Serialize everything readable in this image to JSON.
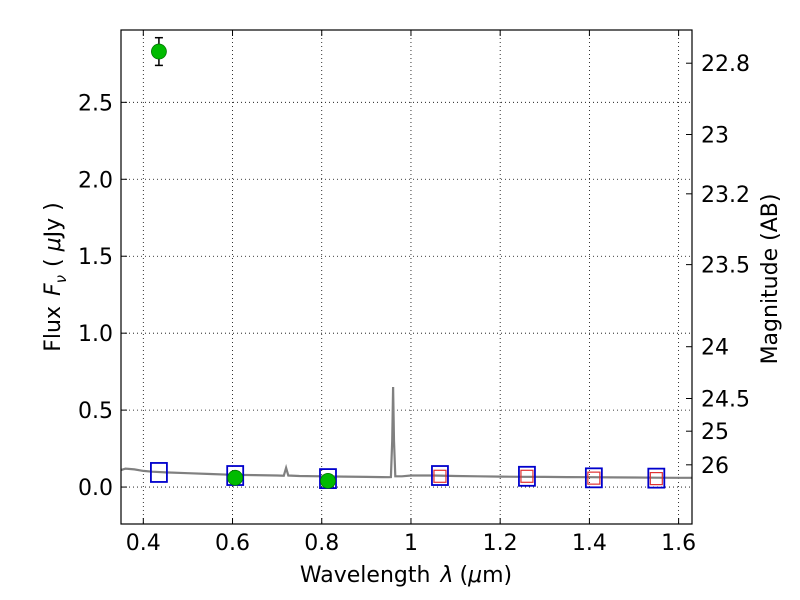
{
  "chart_data": {
    "type": "scatter",
    "xlabel_text": "Wavelength",
    "xlabel_symbol": "λ",
    "xlabel_unit_open": "(",
    "xlabel_unit_mu": "μ",
    "xlabel_unit_rest": "m)",
    "ylabel_text": "Flux",
    "ylabel_symbol": "F",
    "ylabel_subscript": "ν",
    "ylabel_unit_open": "( ",
    "ylabel_unit_mu": "μ",
    "ylabel_unit_rest": "Jy )",
    "y2label": "Magnitude (AB)",
    "xlim": [
      0.35,
      1.63
    ],
    "ylim": [
      -0.24,
      2.97
    ],
    "grid": true,
    "x_ticks": [
      {
        "value": 0.4,
        "label": "0.4"
      },
      {
        "value": 0.6,
        "label": "0.6"
      },
      {
        "value": 0.8,
        "label": "0.8"
      },
      {
        "value": 1.0,
        "label": "1"
      },
      {
        "value": 1.2,
        "label": "1.2"
      },
      {
        "value": 1.4,
        "label": "1.4"
      },
      {
        "value": 1.6,
        "label": "1.6"
      }
    ],
    "y_ticks": [
      {
        "value": 0.0,
        "label": "0.0"
      },
      {
        "value": 0.5,
        "label": "0.5"
      },
      {
        "value": 1.0,
        "label": "1.0"
      },
      {
        "value": 1.5,
        "label": "1.5"
      },
      {
        "value": 2.0,
        "label": "2.0"
      },
      {
        "value": 2.5,
        "label": "2.5"
      }
    ],
    "y2_ticks": [
      {
        "value": 22.8,
        "label": "22.8"
      },
      {
        "value": 23.0,
        "label": "23"
      },
      {
        "value": 23.2,
        "label": "23.2"
      },
      {
        "value": 23.5,
        "label": "23.5"
      },
      {
        "value": 24.0,
        "label": "24"
      },
      {
        "value": 24.5,
        "label": "24.5"
      },
      {
        "value": 25.0,
        "label": "25"
      },
      {
        "value": 26.0,
        "label": "26"
      }
    ],
    "model_spectrum": {
      "color": "#808080",
      "points": [
        [
          0.35,
          0.11
        ],
        [
          0.36,
          0.12
        ],
        [
          0.38,
          0.115
        ],
        [
          0.4,
          0.105
        ],
        [
          0.42,
          0.1
        ],
        [
          0.45,
          0.095
        ],
        [
          0.5,
          0.09
        ],
        [
          0.55,
          0.085
        ],
        [
          0.6,
          0.08
        ],
        [
          0.65,
          0.078
        ],
        [
          0.7,
          0.075
        ],
        [
          0.715,
          0.074
        ],
        [
          0.72,
          0.125
        ],
        [
          0.725,
          0.075
        ],
        [
          0.75,
          0.072
        ],
        [
          0.8,
          0.07
        ],
        [
          0.85,
          0.068
        ],
        [
          0.9,
          0.066
        ],
        [
          0.95,
          0.064
        ],
        [
          0.955,
          0.065
        ],
        [
          0.958,
          0.3
        ],
        [
          0.96,
          0.65
        ],
        [
          0.962,
          0.3
        ],
        [
          0.965,
          0.07
        ],
        [
          0.98,
          0.07
        ],
        [
          1.0,
          0.075
        ],
        [
          1.05,
          0.075
        ],
        [
          1.1,
          0.072
        ],
        [
          1.15,
          0.07
        ],
        [
          1.2,
          0.068
        ],
        [
          1.25,
          0.067
        ],
        [
          1.3,
          0.066
        ],
        [
          1.35,
          0.065
        ],
        [
          1.4,
          0.064
        ],
        [
          1.45,
          0.063
        ],
        [
          1.5,
          0.062
        ],
        [
          1.55,
          0.061
        ],
        [
          1.6,
          0.06
        ],
        [
          1.63,
          0.06
        ]
      ]
    },
    "model_photometry": {
      "color": "#0000cc",
      "points": [
        [
          0.435,
          0.095
        ],
        [
          0.606,
          0.075
        ],
        [
          0.814,
          0.055
        ],
        [
          1.065,
          0.075
        ],
        [
          1.26,
          0.07
        ],
        [
          1.41,
          0.06
        ],
        [
          1.55,
          0.058
        ]
      ]
    },
    "nir_predicted": {
      "color": "#e03030",
      "points": [
        [
          1.065,
          0.07
        ],
        [
          1.26,
          0.07
        ],
        [
          1.41,
          0.058
        ],
        [
          1.55,
          0.055
        ]
      ]
    },
    "observed": {
      "color": "#00bb00",
      "points": [
        {
          "x": 0.435,
          "y": 2.83,
          "err": 0.09
        },
        {
          "x": 0.606,
          "y": 0.06,
          "err": 0.015
        },
        {
          "x": 0.814,
          "y": 0.04,
          "err": 0.03
        }
      ]
    }
  }
}
